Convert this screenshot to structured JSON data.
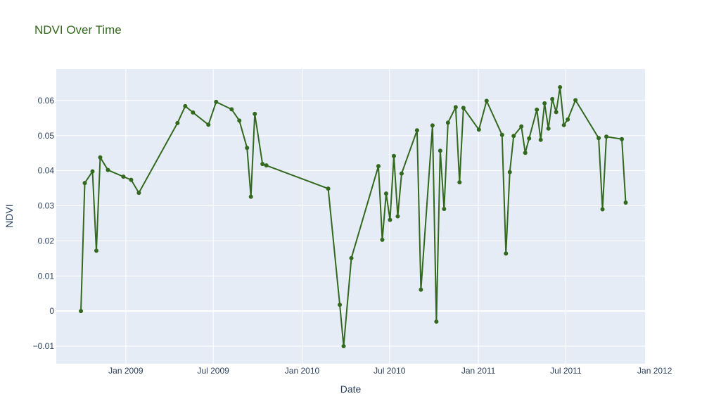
{
  "chart_data": {
    "type": "line",
    "title": "NDVI Over Time",
    "xlabel": "Date",
    "ylabel": "NDVI",
    "x_range": [
      "2008-08-10",
      "2011-12-12"
    ],
    "ylim": [
      -0.015,
      0.069
    ],
    "x_ticks": [
      {
        "date": "2009-01-01",
        "label": "Jan 2009"
      },
      {
        "date": "2009-07-01",
        "label": "Jul 2009"
      },
      {
        "date": "2010-01-01",
        "label": "Jan 2010"
      },
      {
        "date": "2010-07-01",
        "label": "Jul 2010"
      },
      {
        "date": "2011-01-01",
        "label": "Jan 2011"
      },
      {
        "date": "2011-07-01",
        "label": "Jul 2011"
      },
      {
        "date": "2012-01-01",
        "label": "Jan 2012"
      }
    ],
    "y_ticks": [
      {
        "value": -0.01,
        "label": "−0.01"
      },
      {
        "value": 0,
        "label": "0"
      },
      {
        "value": 0.01,
        "label": "0.01"
      },
      {
        "value": 0.02,
        "label": "0.02"
      },
      {
        "value": 0.03,
        "label": "0.03"
      },
      {
        "value": 0.04,
        "label": "0.04"
      },
      {
        "value": 0.05,
        "label": "0.05"
      },
      {
        "value": 0.06,
        "label": "0.06"
      }
    ],
    "grid": true,
    "legend": false,
    "colors": {
      "line": "#33691e",
      "title": "#33691e",
      "plot_bg": "#e5ecf6",
      "grid": "#ffffff",
      "text": "#2a3f5f"
    },
    "series": [
      {
        "x": [
          "2008-09-30",
          "2008-10-08",
          "2008-10-24",
          "2008-11-01",
          "2008-11-09",
          "2008-11-25",
          "2008-12-27",
          "2009-01-12",
          "2009-01-28",
          "2009-04-18",
          "2009-05-04",
          "2009-05-20",
          "2009-06-21",
          "2009-07-07",
          "2009-08-08",
          "2009-08-24",
          "2009-09-09",
          "2009-09-17",
          "2009-09-25",
          "2009-10-11",
          "2009-10-19",
          "2010-02-24",
          "2010-03-20",
          "2010-03-28",
          "2010-04-13",
          "2010-06-08",
          "2010-06-16",
          "2010-06-24",
          "2010-07-02",
          "2010-07-10",
          "2010-07-18",
          "2010-07-26",
          "2010-08-27",
          "2010-09-04",
          "2010-09-28",
          "2010-10-06",
          "2010-10-14",
          "2010-10-22",
          "2010-10-30",
          "2010-11-15",
          "2010-11-23",
          "2010-12-01",
          "2011-01-02",
          "2011-01-18",
          "2011-02-19",
          "2011-02-27",
          "2011-03-07",
          "2011-03-15",
          "2011-03-31",
          "2011-04-08",
          "2011-04-16",
          "2011-05-02",
          "2011-05-10",
          "2011-05-18",
          "2011-05-26",
          "2011-06-03",
          "2011-06-11",
          "2011-06-19",
          "2011-06-27",
          "2011-07-05",
          "2011-07-21",
          "2011-09-07",
          "2011-09-15",
          "2011-09-23",
          "2011-10-25",
          "2011-11-02"
        ],
        "y": [
          0.0,
          0.0365,
          0.0398,
          0.0172,
          0.0438,
          0.0402,
          0.0383,
          0.0374,
          0.0337,
          0.0536,
          0.0584,
          0.0566,
          0.0531,
          0.0596,
          0.0575,
          0.0543,
          0.0465,
          0.0326,
          0.0562,
          0.0419,
          0.0415,
          0.0349,
          0.0018,
          -0.01,
          0.0151,
          0.0413,
          0.0203,
          0.0335,
          0.026,
          0.0442,
          0.027,
          0.0392,
          0.0515,
          0.0061,
          0.0529,
          -0.003,
          0.0457,
          0.0291,
          0.0537,
          0.0581,
          0.0367,
          0.0579,
          0.0517,
          0.0599,
          0.0502,
          0.0164,
          0.0396,
          0.0499,
          0.0526,
          0.0451,
          0.0492,
          0.0574,
          0.0488,
          0.0592,
          0.052,
          0.0604,
          0.0567,
          0.0638,
          0.053,
          0.0546,
          0.0601,
          0.0493,
          0.029,
          0.0497,
          0.049,
          0.0309
        ]
      }
    ]
  }
}
